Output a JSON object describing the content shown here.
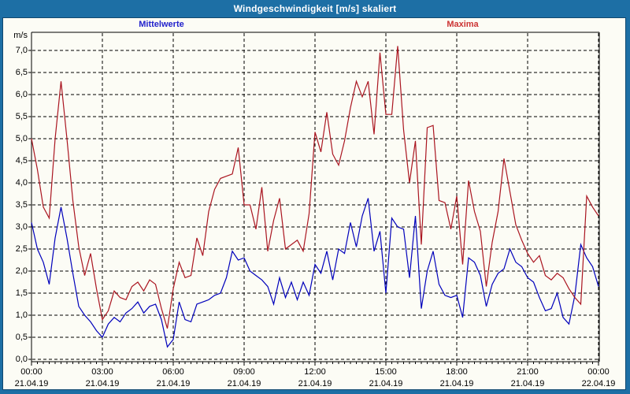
{
  "window": {
    "title": "Windgeschwindigkeit [m/s] skaliert"
  },
  "legend": {
    "mean_label": "Mittelwerte",
    "max_label": "Maxima",
    "mean_color": "#2222cc",
    "max_color": "#cc3333"
  },
  "y_axis": {
    "unit": "m/s",
    "ticks": [
      "7,0",
      "6,5",
      "6,0",
      "5,5",
      "5,0",
      "4,5",
      "4,0",
      "3,5",
      "3,0",
      "2,5",
      "2,0",
      "1,5",
      "1,0",
      "0,5",
      "0,0"
    ]
  },
  "x_axis": {
    "times": [
      "00:00",
      "03:00",
      "06:00",
      "09:00",
      "12:00",
      "15:00",
      "18:00",
      "21:00",
      "00:00"
    ],
    "dates": [
      "21.04.19",
      "21.04.19",
      "21.04.19",
      "21.04.19",
      "21.04.19",
      "21.04.19",
      "21.04.19",
      "21.04.19",
      "22.04.19"
    ]
  },
  "colors": {
    "titlebar": "#1d6fa5",
    "panel_bg": "#fcfcf5",
    "grid": "#000000",
    "mean_line": "#0000bb",
    "max_line": "#aa1520"
  },
  "chart_data": {
    "type": "line",
    "title": "Windgeschwindigkeit [m/s] skaliert",
    "ylabel": "m/s",
    "ylim": [
      0,
      7.4
    ],
    "x_start_hour": 0,
    "x_end_hour": 24,
    "interval_minutes": 15,
    "grid": "dashed, 0.5 m/s horizontal steps, 3 h vertical steps",
    "legend_position": "top",
    "series": [
      {
        "name": "Mittelwerte",
        "color": "#0000bb",
        "values": [
          3.1,
          2.5,
          2.2,
          1.7,
          2.75,
          3.45,
          2.75,
          1.95,
          1.2,
          1.0,
          0.85,
          0.65,
          0.5,
          0.8,
          0.95,
          0.85,
          1.05,
          1.15,
          1.3,
          1.05,
          1.2,
          1.25,
          0.9,
          0.28,
          0.45,
          1.3,
          0.9,
          0.85,
          1.25,
          1.3,
          1.35,
          1.45,
          1.5,
          1.85,
          2.45,
          2.25,
          2.3,
          2.0,
          1.9,
          1.8,
          1.65,
          1.25,
          1.85,
          1.4,
          1.75,
          1.35,
          1.75,
          1.45,
          2.15,
          1.95,
          2.45,
          1.8,
          2.5,
          2.4,
          3.1,
          2.55,
          3.25,
          3.65,
          2.45,
          2.9,
          1.5,
          3.2,
          3.0,
          2.95,
          1.85,
          3.25,
          1.15,
          2.0,
          2.45,
          1.7,
          1.45,
          1.4,
          1.45,
          0.95,
          2.3,
          2.2,
          1.9,
          1.2,
          1.7,
          1.95,
          2.05,
          2.5,
          2.2,
          2.1,
          1.85,
          1.75,
          1.4,
          1.1,
          1.15,
          1.5,
          0.95,
          0.8,
          1.45,
          2.6,
          2.3,
          2.1,
          1.65
        ]
      },
      {
        "name": "Maxima",
        "color": "#aa1520",
        "values": [
          5.0,
          4.3,
          3.45,
          3.2,
          5.0,
          6.3,
          5.0,
          3.6,
          2.55,
          1.9,
          2.4,
          1.6,
          0.9,
          1.1,
          1.55,
          1.4,
          1.35,
          1.65,
          1.75,
          1.55,
          1.8,
          1.7,
          1.15,
          0.7,
          1.6,
          2.2,
          1.85,
          1.9,
          2.75,
          2.35,
          3.35,
          3.85,
          4.1,
          4.15,
          4.2,
          4.8,
          3.5,
          3.5,
          2.95,
          3.9,
          2.45,
          3.15,
          3.65,
          2.5,
          2.6,
          2.7,
          2.45,
          3.3,
          5.15,
          4.7,
          5.6,
          4.65,
          4.4,
          4.95,
          5.7,
          6.3,
          5.95,
          6.3,
          5.1,
          6.95,
          5.55,
          5.55,
          7.1,
          5.2,
          4.0,
          4.95,
          2.6,
          5.25,
          5.3,
          3.6,
          3.55,
          2.95,
          3.7,
          2.15,
          4.05,
          3.35,
          2.9,
          1.65,
          2.65,
          3.35,
          4.55,
          3.8,
          3.05,
          2.7,
          2.4,
          2.2,
          2.35,
          1.9,
          1.8,
          1.95,
          1.85,
          1.6,
          1.4,
          1.25,
          3.7,
          3.45,
          3.25
        ]
      }
    ]
  }
}
